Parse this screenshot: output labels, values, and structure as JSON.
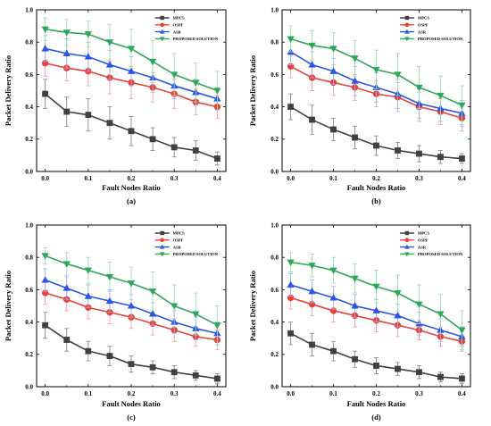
{
  "colors": {
    "MPCS": "#404040",
    "OSPF": "#e8413a",
    "ASR": "#2b55e6",
    "PROPOSED SOLUTION": "#2fa75a",
    "err_MPCS": "#8a8a8a",
    "err_OSPF": "#f0a3a0",
    "err_ASR": "#9fb0f0",
    "err_PROPOSED SOLUTION": "#9fdcb4"
  },
  "chart_data": [
    {
      "type": "line",
      "panel_label": "(a)",
      "xlabel": "Fault Nodes Ratio",
      "ylabel": "Packet Delivery Ratio",
      "xlim": [
        -0.02,
        0.42
      ],
      "ylim": [
        0.0,
        1.0
      ],
      "x": [
        0.0,
        0.05,
        0.1,
        0.15,
        0.2,
        0.25,
        0.3,
        0.35,
        0.4
      ],
      "x_ticks": [
        "0.0",
        "0.1",
        "0.2",
        "0.3",
        "0.4"
      ],
      "y_ticks": [
        "0.0",
        "0.2",
        "0.4",
        "0.6",
        "0.8",
        "1.0"
      ],
      "legend_position": "top-center",
      "series": [
        {
          "name": "MPCS",
          "marker": "square",
          "values": [
            0.48,
            0.37,
            0.35,
            0.3,
            0.25,
            0.2,
            0.15,
            0.13,
            0.08
          ],
          "errors": [
            0.09,
            0.09,
            0.1,
            0.1,
            0.09,
            0.07,
            0.06,
            0.06,
            0.04
          ]
        },
        {
          "name": "OSPF",
          "marker": "circle",
          "values": [
            0.67,
            0.64,
            0.62,
            0.58,
            0.55,
            0.52,
            0.48,
            0.43,
            0.4
          ],
          "errors": [
            0.08,
            0.08,
            0.09,
            0.1,
            0.1,
            0.09,
            0.09,
            0.08,
            0.07
          ]
        },
        {
          "name": "ASR",
          "marker": "triangle-up",
          "values": [
            0.76,
            0.73,
            0.71,
            0.66,
            0.62,
            0.58,
            0.53,
            0.49,
            0.45
          ],
          "errors": [
            0.08,
            0.09,
            0.09,
            0.09,
            0.09,
            0.09,
            0.08,
            0.08,
            0.07
          ]
        },
        {
          "name": "PROPOSED SOLUTION",
          "marker": "triangle-down",
          "values": [
            0.88,
            0.86,
            0.85,
            0.8,
            0.76,
            0.68,
            0.6,
            0.55,
            0.5
          ],
          "errors": [
            0.07,
            0.08,
            0.08,
            0.11,
            0.12,
            0.13,
            0.13,
            0.12,
            0.12
          ]
        }
      ]
    },
    {
      "type": "line",
      "panel_label": "(b)",
      "xlabel": "Fault Nodes Ratio",
      "ylabel": "Packet Delivery Ratio",
      "xlim": [
        -0.02,
        0.42
      ],
      "ylim": [
        0.0,
        1.0
      ],
      "x": [
        0.0,
        0.05,
        0.1,
        0.15,
        0.2,
        0.25,
        0.3,
        0.35,
        0.4
      ],
      "x_ticks": [
        "0.0",
        "0.1",
        "0.2",
        "0.3",
        "0.4"
      ],
      "y_ticks": [
        "0.0",
        "0.2",
        "0.4",
        "0.6",
        "0.8",
        "1.0"
      ],
      "legend_position": "top-center",
      "series": [
        {
          "name": "MPCS",
          "marker": "square",
          "values": [
            0.4,
            0.32,
            0.26,
            0.21,
            0.16,
            0.13,
            0.11,
            0.09,
            0.08
          ],
          "errors": [
            0.08,
            0.09,
            0.07,
            0.07,
            0.06,
            0.05,
            0.05,
            0.04,
            0.03
          ]
        },
        {
          "name": "OSPF",
          "marker": "circle",
          "values": [
            0.65,
            0.58,
            0.55,
            0.52,
            0.48,
            0.46,
            0.4,
            0.37,
            0.33
          ],
          "errors": [
            0.07,
            0.08,
            0.08,
            0.08,
            0.08,
            0.09,
            0.09,
            0.08,
            0.08
          ]
        },
        {
          "name": "ASR",
          "marker": "triangle-up",
          "values": [
            0.74,
            0.66,
            0.62,
            0.56,
            0.52,
            0.48,
            0.42,
            0.39,
            0.36
          ],
          "errors": [
            0.08,
            0.08,
            0.08,
            0.09,
            0.09,
            0.09,
            0.09,
            0.08,
            0.08
          ]
        },
        {
          "name": "PROPOSED SOLUTION",
          "marker": "triangle-down",
          "values": [
            0.82,
            0.78,
            0.76,
            0.7,
            0.63,
            0.6,
            0.52,
            0.47,
            0.41
          ],
          "errors": [
            0.08,
            0.09,
            0.1,
            0.11,
            0.12,
            0.13,
            0.13,
            0.12,
            0.12
          ]
        }
      ]
    },
    {
      "type": "line",
      "panel_label": "(c)",
      "xlabel": "Fault Nodes Ratio",
      "ylabel": "Packet Delivery Ratio",
      "xlim": [
        -0.02,
        0.42
      ],
      "ylim": [
        0.0,
        1.0
      ],
      "x": [
        0.0,
        0.05,
        0.1,
        0.15,
        0.2,
        0.25,
        0.3,
        0.35,
        0.4
      ],
      "x_ticks": [
        "0.0",
        "0.1",
        "0.2",
        "0.3",
        "0.4"
      ],
      "y_ticks": [
        "0.0",
        "0.2",
        "0.4",
        "0.6",
        "0.8",
        "1.0"
      ],
      "legend_position": "top-center",
      "series": [
        {
          "name": "MPCS",
          "marker": "square",
          "values": [
            0.38,
            0.29,
            0.22,
            0.19,
            0.14,
            0.12,
            0.09,
            0.07,
            0.05
          ],
          "errors": [
            0.08,
            0.07,
            0.06,
            0.06,
            0.05,
            0.04,
            0.04,
            0.03,
            0.03
          ]
        },
        {
          "name": "OSPF",
          "marker": "circle",
          "values": [
            0.58,
            0.54,
            0.49,
            0.46,
            0.43,
            0.39,
            0.35,
            0.31,
            0.29
          ],
          "errors": [
            0.07,
            0.07,
            0.07,
            0.07,
            0.07,
            0.07,
            0.07,
            0.06,
            0.06
          ]
        },
        {
          "name": "ASR",
          "marker": "triangle-up",
          "values": [
            0.66,
            0.61,
            0.56,
            0.53,
            0.5,
            0.45,
            0.4,
            0.36,
            0.33
          ],
          "errors": [
            0.07,
            0.07,
            0.07,
            0.07,
            0.07,
            0.07,
            0.07,
            0.07,
            0.07
          ]
        },
        {
          "name": "PROPOSED SOLUTION",
          "marker": "triangle-down",
          "values": [
            0.81,
            0.76,
            0.72,
            0.68,
            0.64,
            0.59,
            0.5,
            0.45,
            0.38
          ],
          "errors": [
            0.05,
            0.07,
            0.08,
            0.09,
            0.1,
            0.12,
            0.13,
            0.13,
            0.12
          ]
        }
      ]
    },
    {
      "type": "line",
      "panel_label": "(d)",
      "xlabel": "Fault Nodes Ratio",
      "ylabel": "Packet Delivery Ratio",
      "xlim": [
        -0.02,
        0.42
      ],
      "ylim": [
        0.0,
        1.0
      ],
      "x": [
        0.0,
        0.05,
        0.1,
        0.15,
        0.2,
        0.25,
        0.3,
        0.35,
        0.4
      ],
      "x_ticks": [
        "0.0",
        "0.1",
        "0.2",
        "0.3",
        "0.4"
      ],
      "y_ticks": [
        "0.0",
        "0.2",
        "0.4",
        "0.6",
        "0.8",
        "1.0"
      ],
      "legend_position": "top-center",
      "series": [
        {
          "name": "MPCS",
          "marker": "square",
          "values": [
            0.33,
            0.26,
            0.22,
            0.17,
            0.13,
            0.11,
            0.09,
            0.06,
            0.05
          ],
          "errors": [
            0.07,
            0.07,
            0.06,
            0.05,
            0.05,
            0.04,
            0.04,
            0.03,
            0.03
          ]
        },
        {
          "name": "OSPF",
          "marker": "circle",
          "values": [
            0.55,
            0.51,
            0.47,
            0.44,
            0.41,
            0.38,
            0.35,
            0.31,
            0.28
          ],
          "errors": [
            0.07,
            0.07,
            0.07,
            0.07,
            0.07,
            0.07,
            0.06,
            0.06,
            0.06
          ]
        },
        {
          "name": "ASR",
          "marker": "triangle-up",
          "values": [
            0.63,
            0.59,
            0.55,
            0.5,
            0.47,
            0.44,
            0.39,
            0.35,
            0.31
          ],
          "errors": [
            0.07,
            0.07,
            0.07,
            0.07,
            0.07,
            0.07,
            0.07,
            0.07,
            0.06
          ]
        },
        {
          "name": "PROPOSED SOLUTION",
          "marker": "triangle-down",
          "values": [
            0.77,
            0.75,
            0.72,
            0.67,
            0.62,
            0.58,
            0.51,
            0.45,
            0.35
          ],
          "errors": [
            0.06,
            0.07,
            0.08,
            0.09,
            0.1,
            0.11,
            0.12,
            0.12,
            0.12
          ]
        }
      ]
    }
  ]
}
